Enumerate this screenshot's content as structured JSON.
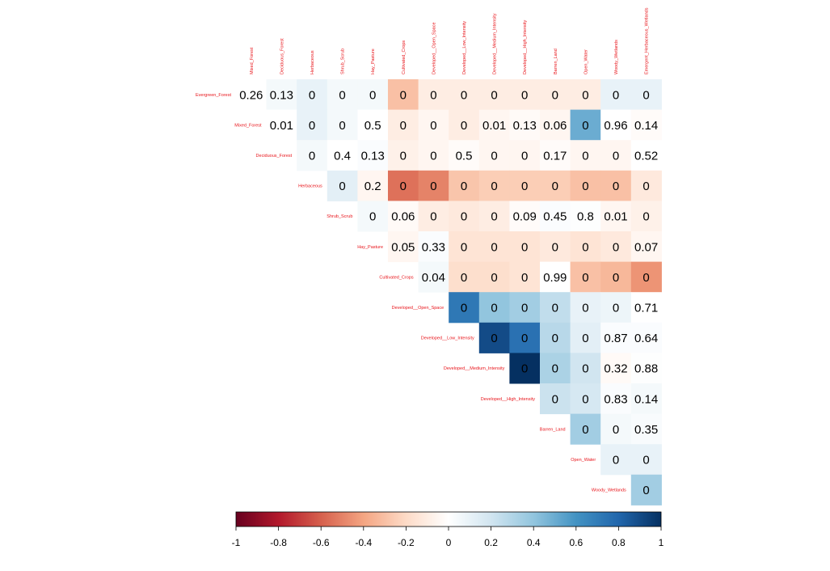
{
  "chart_data": {
    "type": "heatmap",
    "subtype": "upper-triangle correlation matrix (values shown are p-values, color = correlation)",
    "rows": [
      "Evergreen_Forest",
      "Mixed_Forest",
      "Deciduous_Forest",
      "Herbaceous",
      "Shrub_Scrub",
      "Hay_Pasture",
      "Cultivated_Crops",
      "Developed__Open_Space",
      "Developed__Low_Intensity",
      "Developed__Medium_Intensity",
      "Developed__High_Intensity",
      "Barren_Land",
      "Open_Water",
      "Woody_Wetlands"
    ],
    "columns": [
      "Mixed_Forest",
      "Deciduous_Forest",
      "Herbaceous",
      "Shrub_Scrub",
      "Hay_Pasture",
      "Cultivated_Crops",
      "Developed__Open_Space",
      "Developed__Low_Intensity",
      "Developed__Medium_Intensity",
      "Developed__High_Intensity",
      "Barren_Land",
      "Open_Water",
      "Woody_Wetlands",
      "Emergent_Herbaceous_Wetlands"
    ],
    "labels": [
      [
        "0.26",
        "0.13",
        "0",
        "0",
        "0",
        "0",
        "0",
        "0",
        "0",
        "0",
        "0",
        "0",
        "0",
        "0"
      ],
      [
        null,
        "0.01",
        "0",
        "0",
        "0.5",
        "0",
        "0",
        "0",
        "0.01",
        "0.13",
        "0.06",
        "0",
        "0.96",
        "0.14"
      ],
      [
        null,
        null,
        "0",
        "0.4",
        "0.13",
        "0",
        "0",
        "0.5",
        "0",
        "0",
        "0.17",
        "0",
        "0",
        "0.52"
      ],
      [
        null,
        null,
        null,
        "0",
        "0.2",
        "0",
        "0",
        "0",
        "0",
        "0",
        "0",
        "0",
        "0",
        "0"
      ],
      [
        null,
        null,
        null,
        null,
        "0",
        "0.06",
        "0",
        "0",
        "0",
        "0.09",
        "0.45",
        "0.8",
        "0.01",
        "0"
      ],
      [
        null,
        null,
        null,
        null,
        null,
        "0.05",
        "0.33",
        "0",
        "0",
        "0",
        "0",
        "0",
        "0",
        "0.07"
      ],
      [
        null,
        null,
        null,
        null,
        null,
        null,
        "0.04",
        "0",
        "0",
        "0",
        "0.99",
        "0",
        "0",
        "0"
      ],
      [
        null,
        null,
        null,
        null,
        null,
        null,
        null,
        "0",
        "0",
        "0",
        "0",
        "0",
        "0",
        "0.71"
      ],
      [
        null,
        null,
        null,
        null,
        null,
        null,
        null,
        null,
        "0",
        "0",
        "0",
        "0",
        "0.87",
        "0.64"
      ],
      [
        null,
        null,
        null,
        null,
        null,
        null,
        null,
        null,
        null,
        "0",
        "0",
        "0",
        "0.32",
        "0.88"
      ],
      [
        null,
        null,
        null,
        null,
        null,
        null,
        null,
        null,
        null,
        null,
        "0",
        "0",
        "0.83",
        "0.14"
      ],
      [
        null,
        null,
        null,
        null,
        null,
        null,
        null,
        null,
        null,
        null,
        null,
        "0",
        "0",
        "0.35"
      ],
      [
        null,
        null,
        null,
        null,
        null,
        null,
        null,
        null,
        null,
        null,
        null,
        null,
        "0",
        "0"
      ],
      [
        null,
        null,
        null,
        null,
        null,
        null,
        null,
        null,
        null,
        null,
        null,
        null,
        null,
        "0"
      ]
    ],
    "correlations": [
      [
        0.0,
        0.05,
        0.1,
        0.05,
        0.05,
        -0.3,
        -0.1,
        -0.1,
        -0.1,
        -0.1,
        -0.1,
        -0.1,
        0.1,
        0.1
      ],
      [
        null,
        0.0,
        0.1,
        0.05,
        0.0,
        -0.1,
        -0.05,
        -0.1,
        -0.05,
        -0.03,
        -0.05,
        0.5,
        0.0,
        -0.02
      ],
      [
        null,
        null,
        0.05,
        0.0,
        0.02,
        -0.08,
        -0.05,
        -0.02,
        -0.05,
        -0.05,
        -0.02,
        -0.05,
        -0.05,
        0.0
      ],
      [
        null,
        null,
        null,
        0.12,
        -0.05,
        -0.55,
        -0.5,
        -0.28,
        -0.25,
        -0.25,
        -0.25,
        -0.3,
        -0.3,
        -0.12
      ],
      [
        null,
        null,
        null,
        null,
        0.05,
        -0.03,
        -0.1,
        -0.12,
        -0.1,
        -0.02,
        0.02,
        0.01,
        -0.05,
        -0.08
      ],
      [
        null,
        null,
        null,
        null,
        null,
        -0.05,
        0.02,
        -0.15,
        -0.15,
        -0.15,
        -0.12,
        -0.15,
        -0.12,
        -0.05
      ],
      [
        null,
        null,
        null,
        null,
        null,
        null,
        0.05,
        -0.18,
        -0.18,
        -0.15,
        0.0,
        -0.3,
        -0.33,
        -0.45
      ],
      [
        null,
        null,
        null,
        null,
        null,
        null,
        null,
        0.72,
        0.4,
        0.35,
        0.25,
        0.1,
        0.08,
        0.0
      ],
      [
        null,
        null,
        null,
        null,
        null,
        null,
        null,
        null,
        0.9,
        0.75,
        0.28,
        0.12,
        0.02,
        0.02
      ],
      [
        null,
        null,
        null,
        null,
        null,
        null,
        null,
        null,
        null,
        1.0,
        0.32,
        0.2,
        -0.03,
        0.01
      ],
      [
        null,
        null,
        null,
        null,
        null,
        null,
        null,
        null,
        null,
        null,
        0.22,
        0.18,
        0.02,
        0.05
      ],
      [
        null,
        null,
        null,
        null,
        null,
        null,
        null,
        null,
        null,
        null,
        null,
        0.35,
        0.05,
        0.03
      ],
      [
        null,
        null,
        null,
        null,
        null,
        null,
        null,
        null,
        null,
        null,
        null,
        null,
        0.1,
        0.1
      ],
      [
        null,
        null,
        null,
        null,
        null,
        null,
        null,
        null,
        null,
        null,
        null,
        null,
        null,
        0.35
      ]
    ],
    "colorbar": {
      "range": [
        -1,
        1
      ],
      "ticks": [
        "-1",
        "-0.8",
        "-0.6",
        "-0.4",
        "-0.2",
        "0",
        "0.2",
        "0.4",
        "0.6",
        "0.8",
        "1"
      ],
      "colors": [
        "#67001F",
        "#B2182B",
        "#D6604D",
        "#F4A582",
        "#FDDBC7",
        "#FFFFFF",
        "#D1E5F0",
        "#92C5DE",
        "#4393C3",
        "#2166AC",
        "#053061"
      ]
    },
    "label_color": "#e8141a",
    "grid": false
  }
}
